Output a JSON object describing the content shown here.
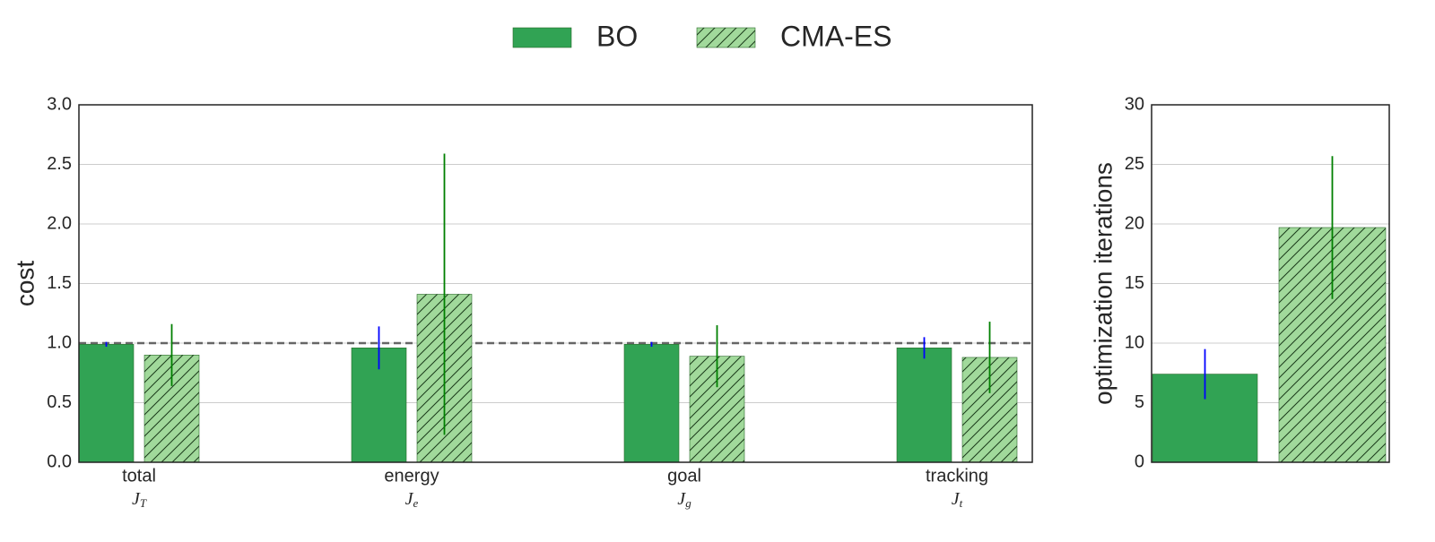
{
  "chart_data": [
    {
      "type": "bar",
      "ylabel": "cost",
      "categories": [
        "total",
        "energy",
        "goal",
        "tracking"
      ],
      "symbols": [
        [
          "J",
          "T"
        ],
        [
          "J",
          "e"
        ],
        [
          "J",
          "g"
        ],
        [
          "J",
          "t"
        ]
      ],
      "series": [
        {
          "name": "BO",
          "color": "#31a354",
          "hatch": false,
          "error_color": "#0000ff",
          "values": [
            0.99,
            0.96,
            0.99,
            0.96
          ],
          "errors": [
            0.02,
            0.18,
            0.02,
            0.09
          ]
        },
        {
          "name": "CMA-ES",
          "color": "#a1d99b",
          "hatch": true,
          "error_color": "#008000",
          "values": [
            0.9,
            1.41,
            0.89,
            0.88
          ],
          "errors": [
            0.26,
            1.18,
            0.26,
            0.3
          ]
        }
      ],
      "reference_line": 1,
      "ylim": [
        0,
        3
      ],
      "yticks": [
        {
          "value": 0,
          "label": "0.0"
        },
        0.5,
        {
          "value": 1,
          "label": "1.0"
        },
        1.5,
        {
          "value": 2,
          "label": "2.0"
        },
        2.5,
        {
          "value": 3,
          "label": "3.0"
        }
      ],
      "grid": true,
      "legend": "top"
    },
    {
      "type": "bar",
      "ylabel": "optimization iterations",
      "values": [
        7.4,
        19.7
      ],
      "errors": [
        2.1,
        6.0
      ],
      "colors": [
        "#31a354",
        "#a1d99b"
      ],
      "hatch": [
        false,
        true
      ],
      "error_colors": [
        "#0000ff",
        "#008000"
      ],
      "ylim": [
        0,
        30
      ],
      "yticks": [
        0,
        5,
        10,
        15,
        20,
        25,
        30
      ],
      "grid": true
    }
  ]
}
